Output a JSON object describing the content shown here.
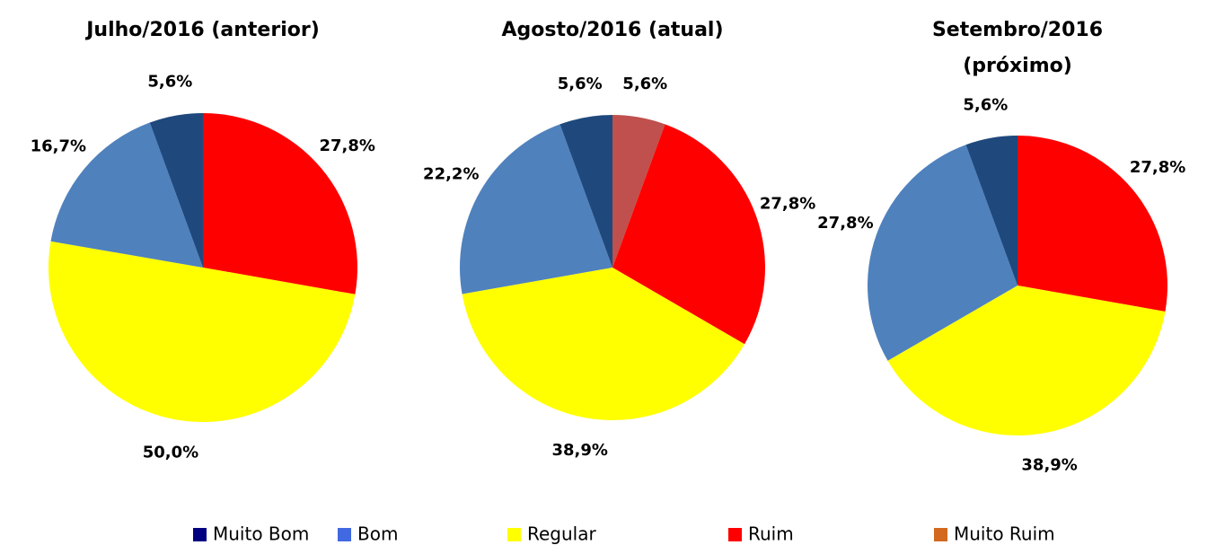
{
  "chart_data": [
    {
      "type": "pie",
      "title": "Julho/2016 (anterior)",
      "categories": [
        "Ruim",
        "Regular",
        "Bom",
        "Muito Bom"
      ],
      "values": [
        27.8,
        50.0,
        16.7,
        5.6
      ],
      "value_labels": [
        "27,8%",
        "50,0%",
        "16,7%",
        "5,6%"
      ],
      "colors": [
        "#ff0000",
        "#ffff00",
        "#4f81bd",
        "#1f497d"
      ]
    },
    {
      "type": "pie",
      "title": "Agosto/2016 (atual)",
      "categories": [
        "Muito Ruim",
        "Ruim",
        "Regular",
        "Bom",
        "Muito Bom"
      ],
      "values": [
        5.6,
        27.8,
        38.9,
        22.2,
        5.6
      ],
      "value_labels": [
        "5,6%",
        "27,8%",
        "38,9%",
        "22,2%",
        "5,6%"
      ],
      "colors": [
        "#c0504d",
        "#ff0000",
        "#ffff00",
        "#4f81bd",
        "#1f497d"
      ]
    },
    {
      "type": "pie",
      "title": "Setembro/2016 (próximo)",
      "categories": [
        "Ruim",
        "Regular",
        "Bom",
        "Muito Bom"
      ],
      "values": [
        27.8,
        38.9,
        27.8,
        5.6
      ],
      "value_labels": [
        "27,8%",
        "38,9%",
        "27,8%",
        "5,6%"
      ],
      "colors": [
        "#ff0000",
        "#ffff00",
        "#4f81bd",
        "#1f497d"
      ]
    }
  ],
  "legend": {
    "entries": [
      {
        "name": "Muito Bom",
        "color": "#000080"
      },
      {
        "name": "Bom",
        "color": "#4169e1"
      },
      {
        "name": "Regular",
        "color": "#ffff00"
      },
      {
        "name": "Ruim",
        "color": "#ff0000"
      },
      {
        "name": "Muito Ruim",
        "color": "#d2691e"
      }
    ]
  }
}
